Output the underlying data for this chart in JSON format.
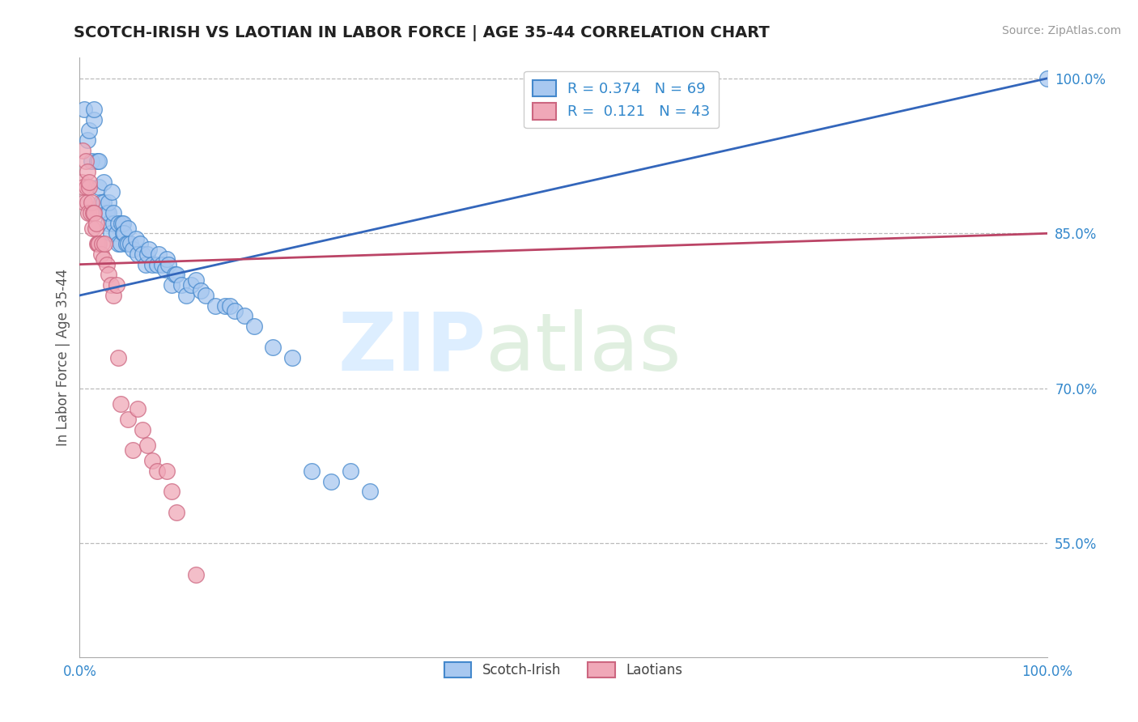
{
  "title": "SCOTCH-IRISH VS LAOTIAN IN LABOR FORCE | AGE 35-44 CORRELATION CHART",
  "source": "Source: ZipAtlas.com",
  "ylabel": "In Labor Force | Age 35-44",
  "xlim": [
    0.0,
    1.0
  ],
  "ylim": [
    0.44,
    1.02
  ],
  "yticks": [
    1.0,
    0.85,
    0.7,
    0.55
  ],
  "ytick_labels": [
    "100.0%",
    "85.0%",
    "70.0%",
    "55.0%"
  ],
  "legend_blue_r": "R = 0.374",
  "legend_blue_n": "N = 69",
  "legend_pink_r": "R =  0.121",
  "legend_pink_n": "N = 43",
  "blue_color": "#a8c8f0",
  "pink_color": "#f0a8b8",
  "blue_edge_color": "#4488cc",
  "pink_edge_color": "#cc6680",
  "blue_line_color": "#3366bb",
  "pink_line_color": "#bb4466",
  "blue_r": 0.374,
  "pink_r": 0.121,
  "scotch_irish_x": [
    0.005,
    0.008,
    0.01,
    0.012,
    0.015,
    0.015,
    0.018,
    0.02,
    0.02,
    0.022,
    0.025,
    0.025,
    0.028,
    0.03,
    0.03,
    0.03,
    0.032,
    0.033,
    0.035,
    0.035,
    0.038,
    0.04,
    0.04,
    0.042,
    0.043,
    0.045,
    0.045,
    0.046,
    0.048,
    0.05,
    0.05,
    0.052,
    0.055,
    0.058,
    0.06,
    0.062,
    0.065,
    0.068,
    0.07,
    0.072,
    0.075,
    0.08,
    0.082,
    0.085,
    0.088,
    0.09,
    0.092,
    0.095,
    0.098,
    0.1,
    0.105,
    0.11,
    0.115,
    0.12,
    0.125,
    0.13,
    0.14,
    0.15,
    0.155,
    0.16,
    0.17,
    0.18,
    0.2,
    0.22,
    0.24,
    0.26,
    0.28,
    0.3,
    1.0
  ],
  "scotch_irish_y": [
    0.97,
    0.94,
    0.95,
    0.92,
    0.96,
    0.97,
    0.92,
    0.895,
    0.92,
    0.88,
    0.88,
    0.9,
    0.87,
    0.86,
    0.87,
    0.88,
    0.85,
    0.89,
    0.86,
    0.87,
    0.85,
    0.84,
    0.86,
    0.84,
    0.86,
    0.85,
    0.86,
    0.85,
    0.84,
    0.84,
    0.855,
    0.84,
    0.835,
    0.845,
    0.83,
    0.84,
    0.83,
    0.82,
    0.83,
    0.835,
    0.82,
    0.82,
    0.83,
    0.82,
    0.815,
    0.825,
    0.82,
    0.8,
    0.81,
    0.81,
    0.8,
    0.79,
    0.8,
    0.805,
    0.795,
    0.79,
    0.78,
    0.78,
    0.78,
    0.775,
    0.77,
    0.76,
    0.74,
    0.73,
    0.62,
    0.61,
    0.62,
    0.6,
    1.0
  ],
  "laotian_x": [
    0.002,
    0.003,
    0.004,
    0.005,
    0.006,
    0.007,
    0.008,
    0.008,
    0.009,
    0.01,
    0.01,
    0.011,
    0.012,
    0.013,
    0.014,
    0.015,
    0.016,
    0.017,
    0.018,
    0.019,
    0.02,
    0.022,
    0.023,
    0.025,
    0.026,
    0.028,
    0.03,
    0.032,
    0.035,
    0.038,
    0.04,
    0.042,
    0.05,
    0.055,
    0.06,
    0.065,
    0.07,
    0.075,
    0.08,
    0.09,
    0.095,
    0.1,
    0.12
  ],
  "laotian_y": [
    0.9,
    0.93,
    0.895,
    0.88,
    0.92,
    0.895,
    0.88,
    0.91,
    0.87,
    0.895,
    0.9,
    0.87,
    0.88,
    0.855,
    0.87,
    0.87,
    0.855,
    0.86,
    0.84,
    0.84,
    0.84,
    0.83,
    0.84,
    0.825,
    0.84,
    0.82,
    0.81,
    0.8,
    0.79,
    0.8,
    0.73,
    0.685,
    0.67,
    0.64,
    0.68,
    0.66,
    0.645,
    0.63,
    0.62,
    0.62,
    0.6,
    0.58,
    0.52
  ]
}
